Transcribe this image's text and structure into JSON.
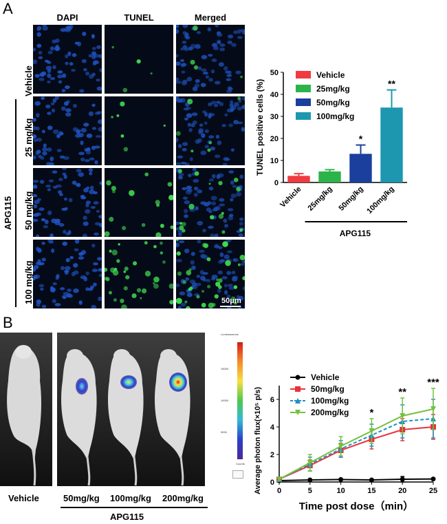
{
  "panel_a": {
    "letter": "A",
    "columns": [
      "DAPI",
      "TUNEL",
      "Merged"
    ],
    "rows": [
      "Vehicle",
      "25 mg/kg",
      "50 mg/kg",
      "100 mg/kg"
    ],
    "group_label": "APG115",
    "scale_bar": "50μm"
  },
  "panel_b": {
    "letter": "B",
    "mouse_labels": [
      "Vehicle",
      "50mg/kg",
      "100mg/kg",
      "200mg/kg"
    ],
    "group_label": "APG115",
    "colorbar_title": "Luminescence",
    "colorbar_ticks": [
      "15000",
      "10000",
      "5000"
    ],
    "colorbar_caption": "Counts"
  },
  "chart_data": [
    {
      "type": "bar",
      "categories": [
        "Vehicle",
        "25mg/kg",
        "50mg/kg",
        "100mg/kg"
      ],
      "values": [
        3,
        5,
        13,
        34
      ],
      "errors": [
        1,
        0.8,
        4,
        8
      ],
      "significance": [
        "",
        "",
        "*",
        "**"
      ],
      "colors": [
        "#ef3b3f",
        "#2cb34a",
        "#1b3f9c",
        "#1d97b0"
      ],
      "legend": [
        "Vehicle",
        "25mg/kg",
        "50mg/kg",
        "100mg/kg"
      ],
      "ylabel": "TUNEL positive cells (%)",
      "ylim": [
        0,
        50
      ],
      "yticks": [
        0,
        10,
        20,
        30,
        40,
        50
      ],
      "xgroup_label": "APG115"
    },
    {
      "type": "line",
      "x": [
        0,
        5,
        10,
        15,
        20,
        25
      ],
      "xticks": [
        0,
        5,
        10,
        15,
        20,
        25
      ],
      "yticks": [
        0,
        2,
        4,
        6
      ],
      "ylim": [
        0,
        7
      ],
      "xlim": [
        0,
        25
      ],
      "xlabel": "Time post dose（min）",
      "ylabel": "Average photon flux(×10⁵ p/s)",
      "significance": [
        {
          "x": 15,
          "label": "*"
        },
        {
          "x": 20,
          "label": "**"
        },
        {
          "x": 25,
          "label": "***"
        }
      ],
      "series": [
        {
          "name": "Vehicle",
          "values": [
            0.1,
            0.15,
            0.18,
            0.15,
            0.2,
            0.22
          ],
          "errors": [
            0.05,
            0.05,
            0.05,
            0.05,
            0.2,
            0.05
          ],
          "color": "#000000",
          "marker": "circle",
          "dash": "solid"
        },
        {
          "name": "50mg/kg",
          "values": [
            0.2,
            1.2,
            2.3,
            3.1,
            3.8,
            4.0
          ],
          "errors": [
            0.1,
            0.4,
            0.5,
            0.7,
            0.8,
            0.9
          ],
          "color": "#e8333a",
          "marker": "square",
          "dash": "solid"
        },
        {
          "name": "100mg/kg",
          "values": [
            0.2,
            1.3,
            2.4,
            3.4,
            4.4,
            4.6
          ],
          "errors": [
            0.1,
            0.5,
            0.6,
            0.8,
            1.2,
            1.4
          ],
          "color": "#1f8ec2",
          "marker": "triangle",
          "dash": "dashed"
        },
        {
          "name": "200mg/kg",
          "values": [
            0.2,
            1.4,
            2.6,
            3.7,
            4.8,
            5.3
          ],
          "errors": [
            0.1,
            0.6,
            0.7,
            0.9,
            1.3,
            1.5
          ],
          "color": "#73c13f",
          "marker": "triangle-down",
          "dash": "solid"
        }
      ]
    }
  ]
}
